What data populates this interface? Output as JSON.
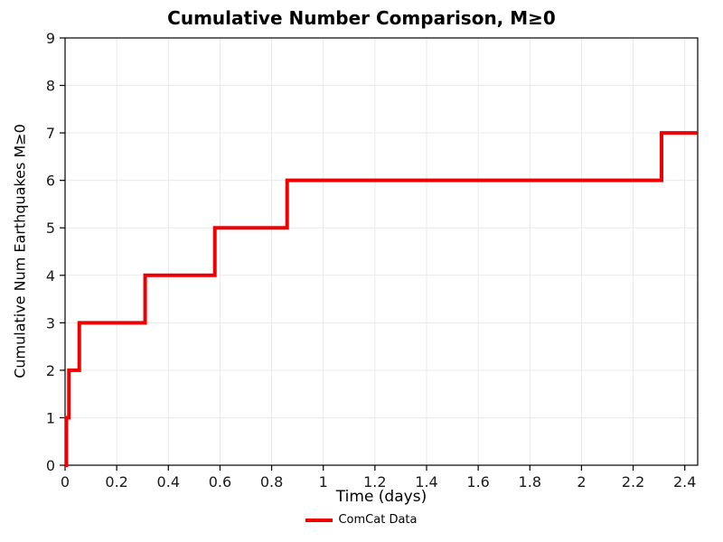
{
  "chart_data": {
    "type": "line",
    "subtype": "cumulative-step",
    "title": "Cumulative Number Comparison, M≥0",
    "xlabel": "Time (days)",
    "ylabel": "Cumulative Num Earthquakes M≥0",
    "xlim": [
      0,
      2.45
    ],
    "ylim": [
      0,
      9
    ],
    "grid": true,
    "grid_color": "#e9e9e9",
    "axis_color": "#000000",
    "tick_label_color": "#1a1a1a",
    "line_color": "#ee0000",
    "line_width": 4,
    "xticks": [
      {
        "v": 0,
        "label": "0"
      },
      {
        "v": 0.2,
        "label": "0.2"
      },
      {
        "v": 0.4,
        "label": "0.4"
      },
      {
        "v": 0.6,
        "label": "0.6"
      },
      {
        "v": 0.8,
        "label": "0.8"
      },
      {
        "v": 1,
        "label": "1"
      },
      {
        "v": 1.2,
        "label": "1.2"
      },
      {
        "v": 1.4,
        "label": "1.4"
      },
      {
        "v": 1.6,
        "label": "1.6"
      },
      {
        "v": 1.8,
        "label": "1.8"
      },
      {
        "v": 2,
        "label": "2"
      },
      {
        "v": 2.2,
        "label": "2.2"
      },
      {
        "v": 2.4,
        "label": "2.4"
      }
    ],
    "yticks": [
      {
        "v": 0,
        "label": "0"
      },
      {
        "v": 1,
        "label": "1"
      },
      {
        "v": 2,
        "label": "2"
      },
      {
        "v": 3,
        "label": "3"
      },
      {
        "v": 4,
        "label": "4"
      },
      {
        "v": 5,
        "label": "5"
      },
      {
        "v": 6,
        "label": "6"
      },
      {
        "v": 7,
        "label": "7"
      },
      {
        "v": 8,
        "label": "8"
      },
      {
        "v": 9,
        "label": "9"
      }
    ],
    "start": [
      0,
      0
    ],
    "events": [
      {
        "t": 0.005,
        "cumulative": 1
      },
      {
        "t": 0.015,
        "cumulative": 2
      },
      {
        "t": 0.055,
        "cumulative": 3
      },
      {
        "t": 0.31,
        "cumulative": 4
      },
      {
        "t": 0.58,
        "cumulative": 5
      },
      {
        "t": 0.86,
        "cumulative": 6
      },
      {
        "t": 2.31,
        "cumulative": 7
      }
    ],
    "end_x": 2.45,
    "legend": {
      "position": "bottom-center",
      "entries": [
        {
          "label": "ComCat Data",
          "color": "#ee0000"
        }
      ]
    }
  }
}
